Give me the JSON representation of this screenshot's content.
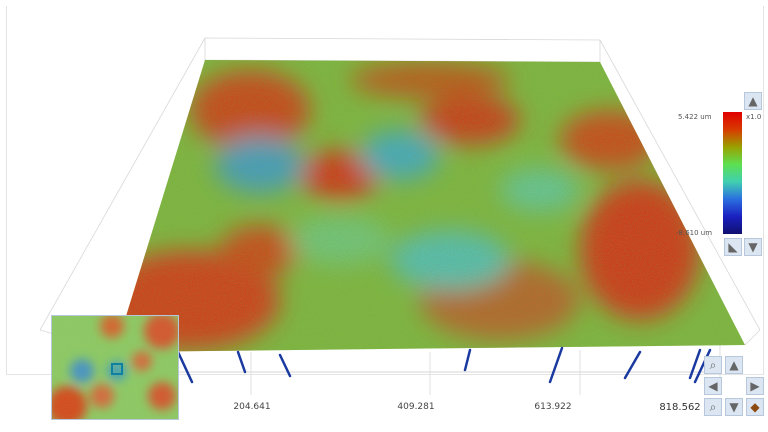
{
  "view": "3d-surface",
  "colorbar": {
    "max_label": "5.422 um",
    "min_label": "-8.610 um",
    "scale_label": "x1.0",
    "colors": [
      "#e00000",
      "#9aa000",
      "#5de050",
      "#2b6fe0",
      "#101070"
    ]
  },
  "x_axis": {
    "ticks": [
      "204.641",
      "409.281",
      "613.922",
      "818.562"
    ]
  },
  "controls": {
    "up": "arrow-up-icon",
    "down": "arrow-down-icon",
    "left": "arrow-left-icon",
    "right": "arrow-right-icon",
    "zoom_in": "zoom-in-icon",
    "zoom_out": "zoom-out-icon",
    "reset": "reset-view-icon",
    "rotate": "rotate-icon"
  }
}
